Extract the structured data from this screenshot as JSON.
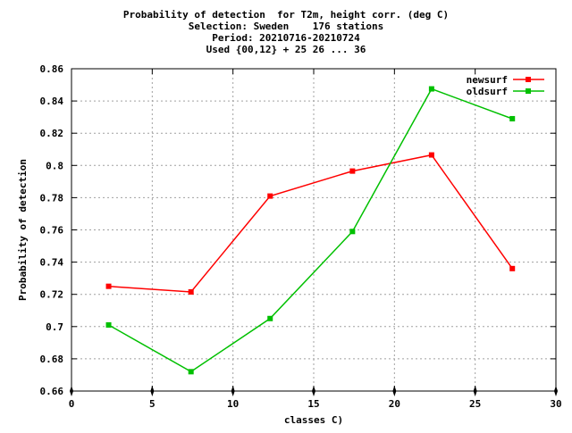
{
  "chart_data": {
    "type": "line",
    "title_lines": [
      "Probability of detection  for T2m, height corr. (deg C)",
      "Selection: Sweden    176 stations",
      "Period: 20210716-20210724",
      "Used {00,12} + 25 26 ... 36"
    ],
    "xlabel": "classes C)",
    "ylabel": "Probability of detection",
    "xlim": [
      0,
      30
    ],
    "ylim": [
      0.66,
      0.86
    ],
    "xticks": [
      0,
      5,
      10,
      15,
      20,
      25,
      30
    ],
    "xtick_labels": [
      "0",
      "5",
      "10",
      "15",
      "20",
      "25",
      "30"
    ],
    "yticks": [
      0.66,
      0.68,
      0.7,
      0.72,
      0.74,
      0.76,
      0.78,
      0.8,
      0.82,
      0.84,
      0.86
    ],
    "ytick_labels": [
      "0.66",
      "0.68",
      "0.7",
      "0.72",
      "0.74",
      "0.76",
      "0.78",
      "0.8",
      "0.82",
      "0.84",
      "0.86"
    ],
    "grid": true,
    "legend_position": "top-right",
    "x": [
      2.3,
      7.4,
      12.3,
      17.4,
      22.3,
      27.3
    ],
    "series": [
      {
        "name": "newsurf",
        "color": "#ff0000",
        "values": [
          0.725,
          0.7215,
          0.781,
          0.7965,
          0.8065,
          0.736
        ]
      },
      {
        "name": "oldsurf",
        "color": "#00c000",
        "values": [
          0.701,
          0.672,
          0.705,
          0.759,
          0.8475,
          0.829
        ]
      }
    ]
  }
}
